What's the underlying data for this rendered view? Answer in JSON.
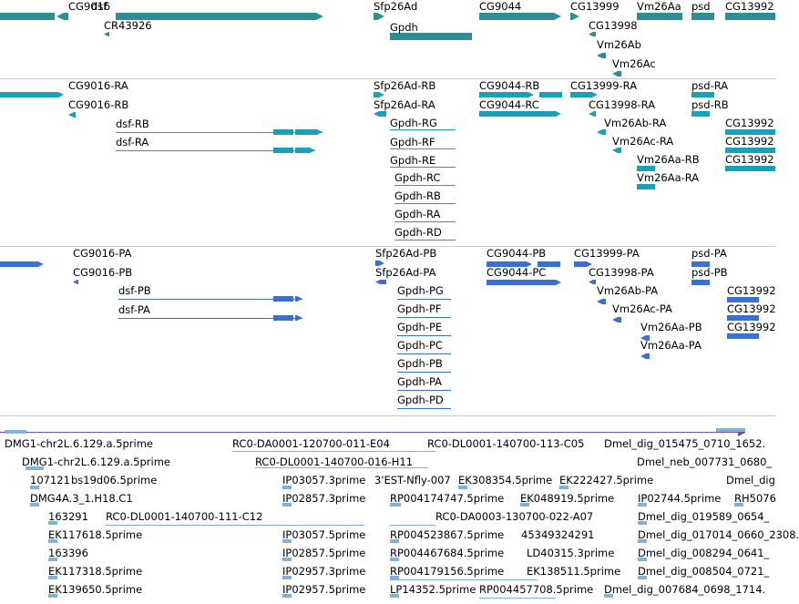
{
  "tracks": [
    {
      "name": "gene",
      "color": "#2e8e93",
      "labels": [
        "CG9016",
        "dsf",
        "CR43926",
        "Sfp26Ad",
        "Gpdh",
        "CG9044",
        "CG13999",
        "CG13998",
        "Vm26Aa",
        "Vm26Ab",
        "Vm26Ac",
        "psd",
        "CG13992"
      ]
    },
    {
      "name": "transcript",
      "color": "#1aa0b8",
      "labels": [
        "CG9016-RA",
        "CG9016-RB",
        "dsf-RB",
        "dsf-RA",
        "Sfp26Ad-RB",
        "Sfp26Ad-RA",
        "Gpdh-RG",
        "Gpdh-RF",
        "Gpdh-RE",
        "Gpdh-RC",
        "Gpdh-RB",
        "Gpdh-RA",
        "Gpdh-RD",
        "CG9044-RB",
        "CG9044-RC",
        "CG13999-RA",
        "CG13998-RA",
        "Vm26Ab-RA",
        "Vm26Ac-RA",
        "Vm26Aa-RB",
        "Vm26Aa-RA",
        "psd-RA",
        "psd-RB",
        "CG13992",
        "CG13992",
        "CG13992"
      ]
    },
    {
      "name": "polypeptide",
      "color": "#3a6fd6",
      "labels": [
        "CG9016-PA",
        "CG9016-PB",
        "dsf-PB",
        "dsf-PA",
        "Sfp26Ad-PB",
        "Sfp26Ad-PA",
        "Gpdh-PG",
        "Gpdh-PF",
        "Gpdh-PE",
        "Gpdh-PC",
        "Gpdh-PB",
        "Gpdh-PA",
        "Gpdh-PD",
        "CG9044-PB",
        "CG9044-PC",
        "CG13999-PA",
        "CG13998-PA",
        "Vm26Ab-PA",
        "Vm26Ac-PA",
        "Vm26Aa-PB",
        "Vm26Aa-PA",
        "psd-PA",
        "psd-PB",
        "CG13992",
        "CG13992",
        "CG13992"
      ]
    },
    {
      "name": "ests",
      "color": "#7fb2d9",
      "accent": "#6a4fb0",
      "labels": [
        "DMG1-chr2L.6.129.a.5prime",
        "RC0-DA0001-120700-011-E04",
        "RC0-DL0001-140700-113-C05",
        "Dmel_dig_015475_0710_1652.",
        "DMG1-chr2L.6.129.a.5prime",
        "RC0-DL0001-140700-016-H11",
        "Dmel_neb_007731_0680_",
        "107121",
        "bs19d06.5prime",
        "IP03057.3prime",
        "3'EST-Nfly-007",
        "EK308354.5prime",
        "EK222427.5prime",
        "Dmel_dig",
        "DMG4A.3_1.H18.C1",
        "IP02857.3prime",
        "RP004174747.5prime",
        "EK048919.5prime",
        "IP02744.5prime",
        "RH5076",
        "163291",
        "RC0-DL0001-140700-111-C12",
        "RC0-DA0003-130700-022-A07",
        "Dmel_dig_019589_0654_",
        "EK117618.5prime",
        "IP03057.5prime",
        "RP004523867.5prime",
        "45349324291",
        "Dmel_dig_017014_0660_2308.",
        "163396",
        "IP02857.5prime",
        "RP004467684.5prime",
        "LD40315.3prime",
        "Dmel_dig_008294_0641_",
        "EK117318.5prime",
        "IP02957.3prime",
        "RP004179156.5prime",
        "EK138511.5prime",
        "Dmel_dig_008504_0721_",
        "EK139650.5prime",
        "IP02957.5prime",
        "LP14352.5prime",
        "RP004457708.5prime",
        "Dmel_dig_007684_0698_1714."
      ]
    }
  ]
}
